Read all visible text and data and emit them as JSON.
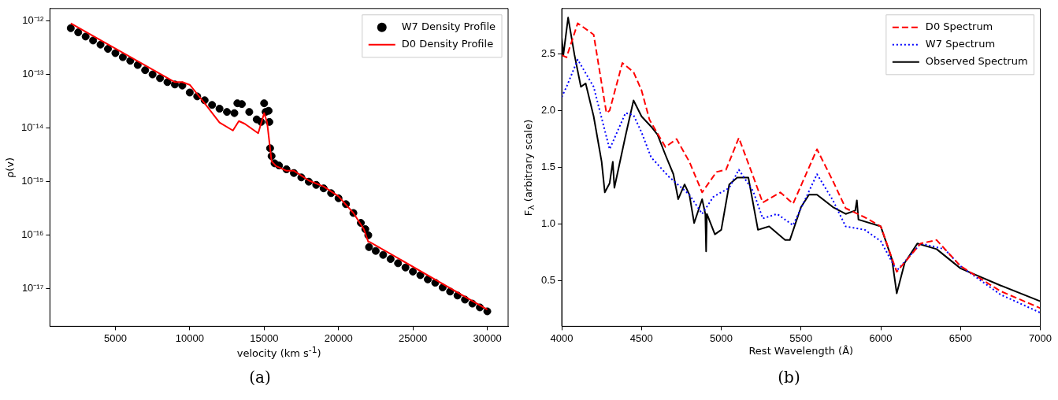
{
  "chart_data": [
    {
      "type": "line",
      "xlabel": "velocity (km s$^{-1}$)",
      "ylabel": "ρ(v)",
      "log": "y",
      "grid": false,
      "legend": "top right",
      "xlim": [
        600,
        31400
      ],
      "xticks": [
        5000,
        10000,
        15000,
        20000,
        25000,
        30000
      ],
      "ylim": [
        2e-18,
        1.7e-12
      ],
      "yticks": [
        {
          "value": 1e-17,
          "label": "10⁻¹⁷"
        },
        {
          "value": 1e-16,
          "label": "10⁻¹⁶"
        },
        {
          "value": 1e-15,
          "label": "10⁻¹⁵"
        },
        {
          "value": 1e-14,
          "label": "10⁻¹⁴"
        },
        {
          "value": 1e-13,
          "label": "10⁻¹³"
        },
        {
          "value": 1e-12,
          "label": "10⁻¹²"
        }
      ],
      "annotations": [
        "(a)"
      ],
      "series": [
        {
          "name": "W7 Density Profile",
          "type": "scatter",
          "marker": "circle",
          "color": "#000000",
          "x": [
            2000,
            2500,
            3000,
            3500,
            4000,
            4500,
            5000,
            5500,
            6000,
            6500,
            7000,
            7500,
            8000,
            8500,
            9000,
            9500,
            10000,
            10500,
            11000,
            11500,
            12000,
            12500,
            13000,
            13200,
            13500,
            14000,
            14500,
            14800,
            15000,
            15100,
            15300,
            15350,
            15400,
            15500,
            15700,
            16000,
            16500,
            17000,
            17500,
            18000,
            18500,
            19000,
            19500,
            20000,
            20500,
            21000,
            21500,
            21800,
            22000,
            22050,
            22500,
            23000,
            23500,
            24000,
            24500,
            25000,
            25500,
            26000,
            26500,
            27000,
            27500,
            28000,
            28500,
            29000,
            29500,
            30000
          ],
          "values": [
            7.3e-13,
            6.1e-13,
            5.1e-13,
            4.3e-13,
            3.6e-13,
            3e-13,
            2.5e-13,
            2.1e-13,
            1.8e-13,
            1.5e-13,
            1.2e-13,
            1e-13,
            8.5e-14,
            7.2e-14,
            6.5e-14,
            6.2e-14,
            4.6e-14,
            3.9e-14,
            3.3e-14,
            2.7e-14,
            2.3e-14,
            2e-14,
            1.9e-14,
            2.9e-14,
            2.8e-14,
            2e-14,
            1.45e-14,
            1.3e-14,
            2.9e-14,
            2e-14,
            2.1e-14,
            1.3e-14,
            4.2e-15,
            3e-15,
            2.2e-15,
            2e-15,
            1.7e-15,
            1.45e-15,
            1.2e-15,
            1e-15,
            8.7e-16,
            7.5e-16,
            6.1e-16,
            4.9e-16,
            3.8e-16,
            2.6e-16,
            1.7e-16,
            1.3e-16,
            1e-16,
            6e-17,
            5.1e-17,
            4.3e-17,
            3.6e-17,
            3e-17,
            2.5e-17,
            2.1e-17,
            1.8e-17,
            1.5e-17,
            1.3e-17,
            1.06e-17,
            8.9e-18,
            7.5e-18,
            6.3e-18,
            5.3e-18,
            4.5e-18,
            3.8e-18
          ]
        },
        {
          "name": "D0 Density Profile",
          "type": "line",
          "line_style": "solid",
          "color": "#ff0000",
          "x": [
            2000,
            9000,
            9500,
            10000,
            11000,
            12000,
            12900,
            13300,
            13700,
            14600,
            15000,
            15200,
            15500,
            15800,
            16500,
            17000,
            18000,
            19000,
            20000,
            21000,
            21700,
            22000,
            22100,
            30000
          ],
          "values": [
            9e-13,
            7.2e-14,
            7.2e-14,
            6.4e-14,
            2.9e-14,
            1.27e-14,
            9e-15,
            1.35e-14,
            1.2e-14,
            8e-15,
            1.9e-14,
            1.27e-14,
            2.4e-15,
            1.95e-15,
            1.6e-15,
            1.6e-15,
            1.05e-15,
            8.1e-16,
            5.3e-16,
            2.6e-16,
            1.3e-16,
            7.5e-17,
            7.5e-17,
            4.1e-18
          ]
        }
      ]
    },
    {
      "type": "line",
      "xlabel": "Rest Wavelength (Å)",
      "ylabel": "F$_{λ}$ (arbitrary scale)",
      "grid": false,
      "legend": "top right",
      "xlim": [
        4000,
        7000
      ],
      "xticks": [
        4000,
        4500,
        5000,
        5500,
        6000,
        6500,
        7000
      ],
      "ylim": [
        0.1,
        2.9
      ],
      "yticks": [
        {
          "value": 0.5,
          "label": "0.5"
        },
        {
          "value": 1,
          "label": "1.0"
        },
        {
          "value": 1.5,
          "label": "1.5"
        },
        {
          "value": 2,
          "label": "2.0"
        },
        {
          "value": 2.5,
          "label": "2.5"
        }
      ],
      "annotations": [
        "(b)"
      ],
      "series": [
        {
          "name": "D0 Spectrum",
          "line_style": "dashed",
          "color": "#ff0000",
          "x": [
            4000,
            4030,
            4100,
            4200,
            4280,
            4300,
            4380,
            4450,
            4500,
            4550,
            4650,
            4720,
            4800,
            4880,
            4970,
            5030,
            5110,
            5200,
            5260,
            5370,
            5450,
            5600,
            5700,
            5780,
            5900,
            6000,
            6100,
            6250,
            6350,
            6500,
            6750,
            7000
          ],
          "values": [
            2.49,
            2.47,
            2.77,
            2.67,
            1.98,
            2.0,
            2.42,
            2.34,
            2.18,
            1.92,
            1.68,
            1.75,
            1.55,
            1.28,
            1.46,
            1.48,
            1.76,
            1.42,
            1.19,
            1.28,
            1.18,
            1.66,
            1.38,
            1.14,
            1.06,
            0.98,
            0.58,
            0.83,
            0.86,
            0.63,
            0.41,
            0.26
          ]
        },
        {
          "name": "W7 Spectrum",
          "line_style": "dotted",
          "color": "#0000ff",
          "x": [
            4000,
            4030,
            4100,
            4200,
            4300,
            4400,
            4450,
            4500,
            4560,
            4670,
            4800,
            4880,
            4950,
            5050,
            5110,
            5200,
            5260,
            5350,
            5450,
            5600,
            5700,
            5780,
            5900,
            6000,
            6100,
            6250,
            6400,
            6500,
            6750,
            7000
          ],
          "values": [
            2.12,
            2.21,
            2.45,
            2.21,
            1.66,
            1.98,
            1.96,
            1.81,
            1.59,
            1.42,
            1.26,
            1.09,
            1.24,
            1.32,
            1.48,
            1.29,
            1.05,
            1.09,
            0.99,
            1.44,
            1.21,
            0.98,
            0.95,
            0.85,
            0.59,
            0.83,
            0.78,
            0.63,
            0.38,
            0.22
          ]
        },
        {
          "name": "Observed Spectrum",
          "line_style": "solid",
          "color": "#000000",
          "x": [
            4000,
            4010,
            4040,
            4080,
            4120,
            4150,
            4200,
            4250,
            4270,
            4300,
            4320,
            4330,
            4400,
            4450,
            4500,
            4560,
            4600,
            4650,
            4700,
            4730,
            4770,
            4800,
            4830,
            4880,
            4900,
            4905,
            4910,
            4960,
            5000,
            5050,
            5100,
            5170,
            5230,
            5300,
            5400,
            5430,
            5500,
            5550,
            5600,
            5700,
            5780,
            5840,
            5850,
            5860,
            6000,
            6070,
            6100,
            6150,
            6230,
            6350,
            6500,
            6750,
            7000
          ],
          "values": [
            2.64,
            2.49,
            2.82,
            2.49,
            2.21,
            2.24,
            1.95,
            1.55,
            1.28,
            1.36,
            1.55,
            1.32,
            1.78,
            2.09,
            1.95,
            1.86,
            1.79,
            1.61,
            1.44,
            1.22,
            1.35,
            1.26,
            1.01,
            1.22,
            1.09,
            0.76,
            1.09,
            0.91,
            0.95,
            1.35,
            1.41,
            1.41,
            0.95,
            0.98,
            0.86,
            0.86,
            1.15,
            1.26,
            1.26,
            1.15,
            1.09,
            1.12,
            1.21,
            1.04,
            0.98,
            0.69,
            0.39,
            0.66,
            0.83,
            0.78,
            0.61,
            0.46,
            0.32
          ]
        }
      ]
    }
  ]
}
